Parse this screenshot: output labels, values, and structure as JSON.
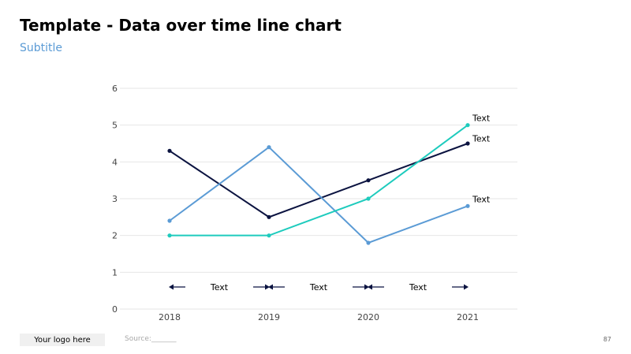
{
  "slide": {
    "title": "Template - Data over time line chart",
    "subtitle": "Subtitle",
    "logo_text": "Your logo here",
    "source_text": "Source:_______",
    "page_number": "87"
  },
  "chart_data": {
    "type": "line",
    "title": "Template - Data over time line chart",
    "subtitle": "Subtitle",
    "xlabel": "",
    "ylabel": "",
    "x": [
      "2018",
      "2019",
      "2020",
      "2021"
    ],
    "ylim": [
      0,
      6
    ],
    "yticks": [
      0,
      1,
      2,
      3,
      4,
      5,
      6
    ],
    "grid": true,
    "legend": "none",
    "series": [
      {
        "label": "Text",
        "color": "#0b1340",
        "values": [
          4.3,
          2.5,
          3.5,
          4.5
        ]
      },
      {
        "label": "Text",
        "color": "#5b9bd5",
        "values": [
          2.4,
          4.4,
          1.8,
          2.8
        ]
      },
      {
        "label": "Text",
        "color": "#1ecbbd",
        "values": [
          2.0,
          2.0,
          3.0,
          5.0
        ]
      }
    ],
    "period_annotations": {
      "y": 0.6,
      "color": "#0b1340",
      "items": [
        {
          "from": "2018",
          "to": "2019",
          "label": "Text"
        },
        {
          "from": "2019",
          "to": "2020",
          "label": "Text"
        },
        {
          "from": "2020",
          "to": "2021",
          "label": "Text"
        }
      ]
    }
  }
}
